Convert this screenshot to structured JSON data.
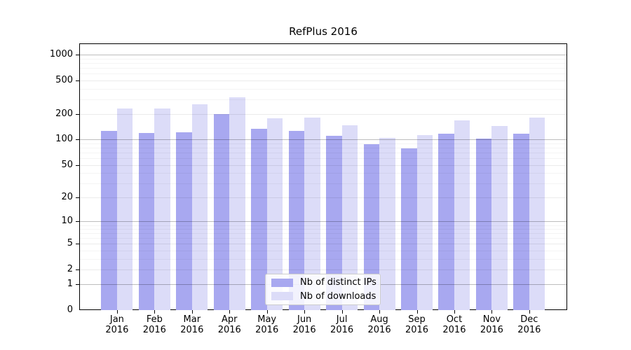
{
  "title": "RefPlus 2016",
  "chart_data": {
    "type": "bar",
    "title": "RefPlus 2016",
    "categories": [
      "Jan 2016",
      "Feb 2016",
      "Mar 2016",
      "Apr 2016",
      "May 2016",
      "Jun 2016",
      "Jul 2016",
      "Aug 2016",
      "Sep 2016",
      "Oct 2016",
      "Nov 2016",
      "Dec 2016"
    ],
    "months": [
      "Jan",
      "Feb",
      "Mar",
      "Apr",
      "May",
      "Jun",
      "Jul",
      "Aug",
      "Sep",
      "Oct",
      "Nov",
      "Dec"
    ],
    "year_label": "2016",
    "series": [
      {
        "name": "Nb of distinct IPs",
        "color": "#a8a8f0",
        "values": [
          128,
          121,
          123,
          199,
          135,
          128,
          111,
          89,
          78,
          117,
          102,
          118
        ]
      },
      {
        "name": "Nb of downloads",
        "color": "#dcdcf8",
        "values": [
          235,
          235,
          263,
          315,
          180,
          184,
          148,
          105,
          113,
          168,
          144,
          182
        ]
      }
    ],
    "yscale": "log1p",
    "yticks": [
      0,
      1,
      2,
      5,
      10,
      20,
      50,
      100,
      200,
      500,
      1000
    ],
    "ytick_labels": [
      "0",
      "1",
      "2",
      "5",
      "10",
      "20",
      "50",
      "100",
      "200",
      "500",
      "1000"
    ],
    "ylim": [
      0,
      1370
    ],
    "grid": true,
    "legend_position": "lower center"
  },
  "legend": {
    "items": [
      {
        "label": "Nb of distinct IPs",
        "color": "#a8a8f0"
      },
      {
        "label": "Nb of downloads",
        "color": "#dcdcf8"
      }
    ]
  }
}
